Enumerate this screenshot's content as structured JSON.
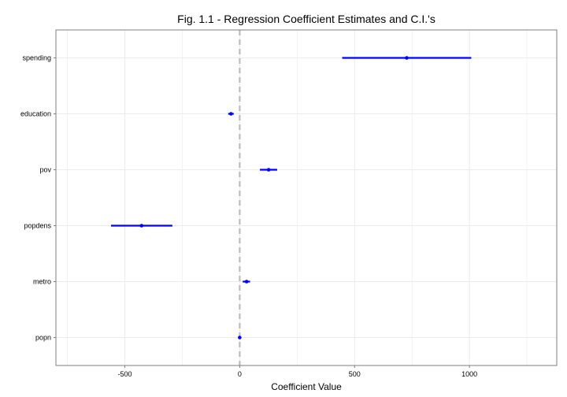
{
  "chart_data": {
    "type": "coefficient-plot",
    "title": "Fig. 1.1 - Regression Coefficient Estimates and C.I.'s",
    "xlabel": "Coefficient Value",
    "ylabel": "",
    "xlim": [
      -800,
      1380
    ],
    "x_ticks": [
      -500,
      0,
      500,
      1000
    ],
    "x_tick_labels": [
      "-500",
      "0",
      "500",
      "1000"
    ],
    "reference_line_x": 0,
    "grid": true,
    "legend": "none",
    "categories": [
      "spending",
      "education",
      "pov",
      "popdens",
      "metro",
      "popn"
    ],
    "estimates": [
      727,
      -38,
      126,
      -427,
      30,
      0
    ],
    "ci_low": [
      446,
      -50,
      88,
      -560,
      13,
      -3
    ],
    "ci_high": [
      1008,
      -26,
      163,
      -293,
      45,
      3
    ],
    "colors": {
      "estimate": "#0000ff",
      "ref_line": "#bdbdbd",
      "grid": "#ebebeb",
      "border": "#7f7f7f"
    }
  }
}
